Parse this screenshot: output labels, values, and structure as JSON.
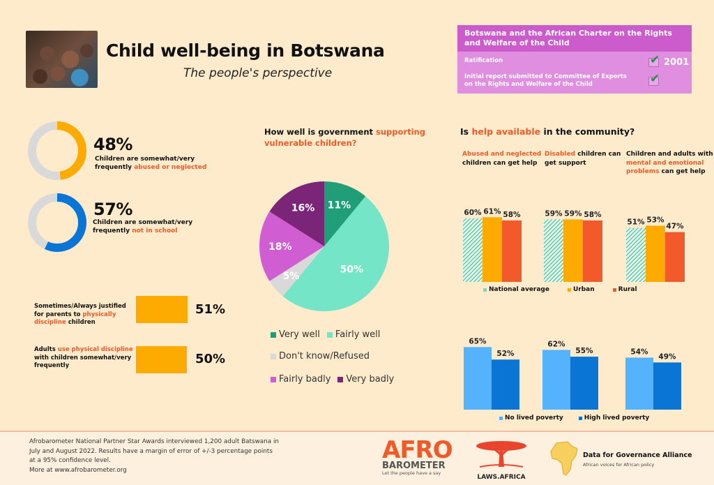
{
  "header": {
    "title": "Child well-being in Botswana",
    "subtitle": "The people's perspective",
    "photo_alt": "group-of-smiling-children"
  },
  "charter": {
    "title": "Botswana and the African Charter on the Rights and Welfare of the Child",
    "rows": [
      {
        "label": "Ratification",
        "checked": true,
        "year": "2001"
      },
      {
        "label_line1": "Initial report submitted to Committee of Experts",
        "label_line2": "on the Rights and Welfare of the Child",
        "checked": true
      }
    ],
    "check_glyph": "✔"
  },
  "stats": [
    {
      "pct": "48%",
      "value": 48,
      "color": "#fdab00",
      "line1": "Children are somewhat/very",
      "line2_plain": "frequently ",
      "line2_hl": "abused or neglected"
    },
    {
      "pct": "57%",
      "value": 57,
      "color": "#0b75d6",
      "line1": "Children are somewhat/very",
      "line2_plain": "frequently ",
      "line2_hl": "not in school"
    }
  ],
  "discipline": [
    {
      "pct": "51%",
      "value": 51,
      "l1": "Sometimes/Always justified",
      "l2_plain": "for parents to ",
      "l2_hl": "physically",
      "l3_hl": "discipline",
      "l3_plain": " children"
    },
    {
      "pct": "50%",
      "value": 50,
      "l1_plain": "Adults ",
      "l1_hl": "use physical discipline",
      "l2": "with children somewhat/very",
      "l3": "frequently"
    }
  ],
  "pie_section": {
    "title_plain": "How well is government ",
    "title_hl1": "supporting",
    "title_hl2": "vulnerable children?"
  },
  "help_section": {
    "title_plain1": "Is ",
    "title_hl": "help available",
    "title_plain2": " in the community?",
    "groups": [
      {
        "hl": "Abused and neglected",
        "plain": "children can get help"
      },
      {
        "hl": "Disabled",
        "plain_a": " children can",
        "plain_b": "get support"
      },
      {
        "plain_a": "Children and adults with",
        "hl_a": "mental and emotional",
        "hl_b": "problems",
        "plain_b": " can get help"
      }
    ]
  },
  "footer": {
    "lines": [
      "Afrobarometer National Partner Star Awards interviewed 1,200 adult Batswana in",
      "July and August 2022. Results have a margin of error of +/-3 percentage points",
      "at a 95% confidence level.",
      "More at www.afrobarometer.org"
    ],
    "logos": {
      "afro_top": "AFRO",
      "afro_bottom": "BAROMETER",
      "afro_tag": "Let the people have a say",
      "laws": "LAWS.AFRICA",
      "dga_title": "Data for Governance Alliance",
      "dga_sub": "African voices for African policy"
    }
  },
  "colors": {
    "background": "#fdebcb",
    "accent_orange": "#f05a28",
    "yellow": "#fdab00",
    "blue": "#0b75d6",
    "light_blue": "#55b2fc",
    "teal": "#2a9e7a",
    "mint": "#74e5c6",
    "grey": "#d9d9d9",
    "pink": "#d05ed2",
    "purple": "#7b2578",
    "charter_head": "#cc5ccc",
    "charter_body": "#e08ee0"
  },
  "chart_data": [
    {
      "type": "pie",
      "title": "How well is government supporting vulnerable children?",
      "categories": [
        "Very well",
        "Fairly well",
        "Don't know/Refused",
        "Fairly badly",
        "Very badly"
      ],
      "values": [
        11,
        50,
        5,
        18,
        16
      ],
      "labels": [
        "11%",
        "50%",
        "5%",
        "18%",
        "16%"
      ],
      "colors": [
        "#1f9e78",
        "#74e5c6",
        "#d9d9d9",
        "#d05ed2",
        "#7b2578"
      ],
      "legend": "bottom"
    },
    {
      "type": "bar",
      "title": "Is help available in the community? (by location)",
      "categories": [
        "Abused and neglected children can get help",
        "Disabled children can get support",
        "Children and adults with mental and emotional problems can get help"
      ],
      "series": [
        {
          "name": "National average",
          "values": [
            60,
            59,
            51
          ],
          "color": "#7fd6c0",
          "pattern": "hatched"
        },
        {
          "name": "Urban",
          "values": [
            61,
            59,
            53
          ],
          "color": "#fdab00"
        },
        {
          "name": "Rural",
          "values": [
            58,
            58,
            47
          ],
          "color": "#f25a2c"
        }
      ],
      "ylim": [
        0,
        65
      ],
      "legend": "bottom"
    },
    {
      "type": "bar",
      "title": "Is help available in the community? (by lived poverty)",
      "categories": [
        "Abused and neglected children can get help",
        "Disabled children can get support",
        "Children and adults with mental and emotional problems can get help"
      ],
      "series": [
        {
          "name": "No lived poverty",
          "values": [
            65,
            62,
            54
          ],
          "color": "#55b2fc"
        },
        {
          "name": "High lived poverty",
          "values": [
            52,
            55,
            49
          ],
          "color": "#0b75d6"
        }
      ],
      "ylim": [
        0,
        70
      ],
      "legend": "bottom"
    },
    {
      "type": "bar",
      "title": "Physical discipline",
      "categories": [
        "Sometimes/Always justified for parents to physically discipline children",
        "Adults use physical discipline with children somewhat/very frequently"
      ],
      "values": [
        51,
        50
      ],
      "ylim": [
        0,
        100
      ]
    }
  ]
}
